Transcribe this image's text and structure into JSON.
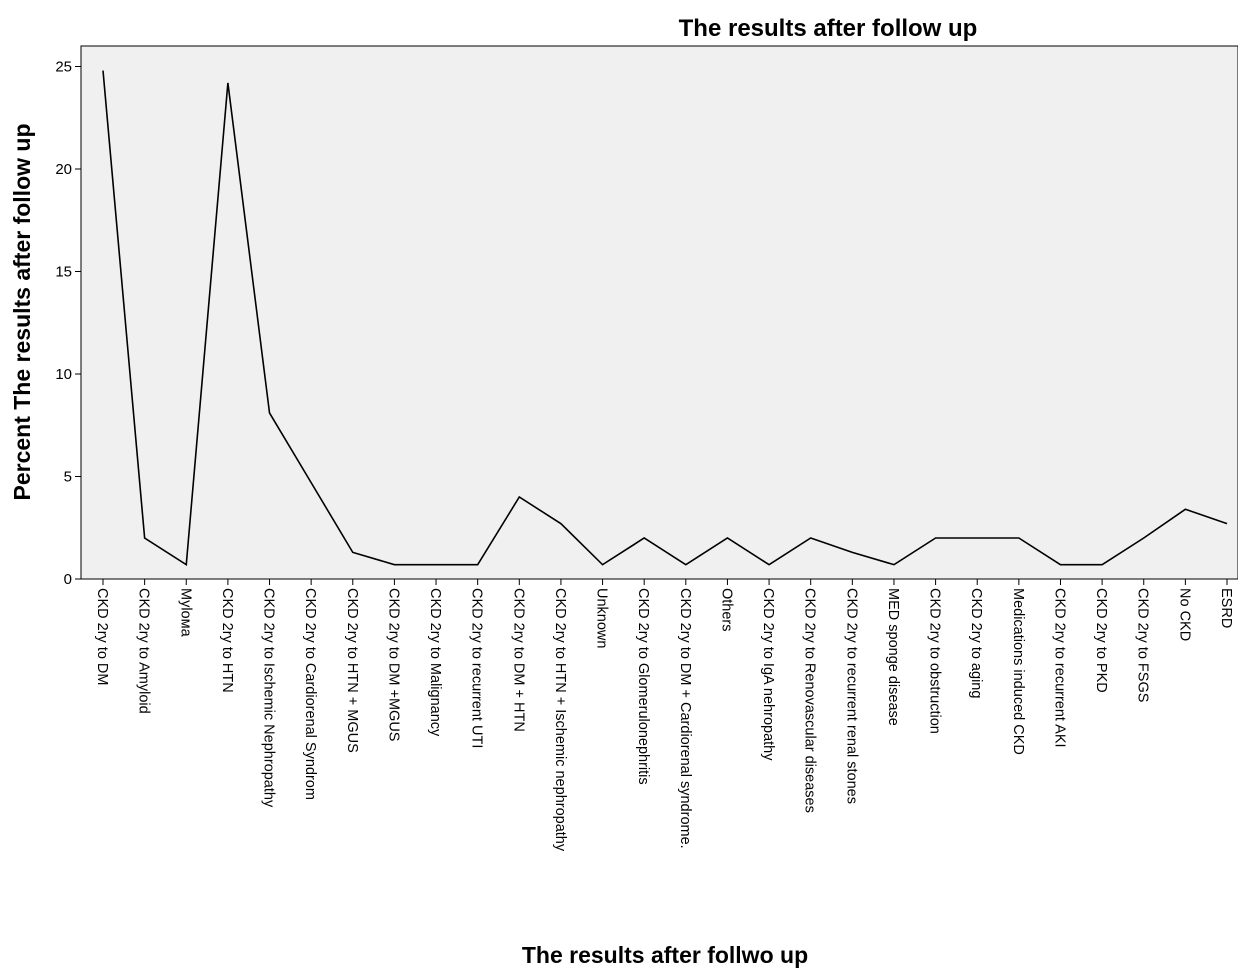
{
  "chart_data": {
    "type": "line",
    "title": "The results after follow up",
    "xlabel": "The results after follwo up",
    "ylabel": "Percent The results after follow up",
    "ylim": [
      0,
      26
    ],
    "yticks": [
      0,
      5,
      10,
      15,
      20,
      25
    ],
    "grid": false,
    "legend": "none",
    "categories": [
      "CKD 2ry to DM",
      "CKD 2ry to Amyloid",
      "Mylома",
      "CKD 2ry to HTN",
      "CKD 2ry to Ischemic Nephropathy",
      "CKD 2ry to Cardiorenal Syndrom",
      "CKD 2ry to HTN + MGUS",
      "CKD 2ry to DM +MGUS",
      "CKD 2ry to Malignancy",
      "CKD 2ry to recurrent UTI",
      "CKD 2ry to DM + HTN",
      "CKD 2ry to HTN + Ischemic nephropathy",
      "Unknown",
      "CKD 2ry to Glomerulonephritis",
      "CKD 2ry to DM + Cardiorenal syndrome.",
      "Others",
      "CKD 2ry to IgA nehropathy",
      "CKD 2ry to Renovascular diseases",
      "CKD 2ry to recurrent renal stones",
      "MED sponge disease",
      "CKD 2ry to obstruction",
      "CKD 2ry to aging",
      "Medications induced CKD",
      "CKD 2ry to recurrent AKI",
      "CKD 2ry to PKD",
      "CKD 2ry to FSGS",
      "No CKD",
      "ESRD"
    ],
    "values": [
      24.8,
      2.0,
      0.7,
      24.2,
      8.1,
      4.7,
      1.3,
      0.7,
      0.7,
      0.7,
      4.0,
      2.7,
      0.7,
      2.0,
      0.7,
      2.0,
      0.7,
      2.0,
      1.3,
      0.7,
      2.0,
      2.0,
      2.0,
      0.7,
      0.7,
      2.0,
      3.4,
      2.7
    ],
    "colors": {
      "plot_background": "#f0f0f0",
      "line": "#000000"
    }
  }
}
